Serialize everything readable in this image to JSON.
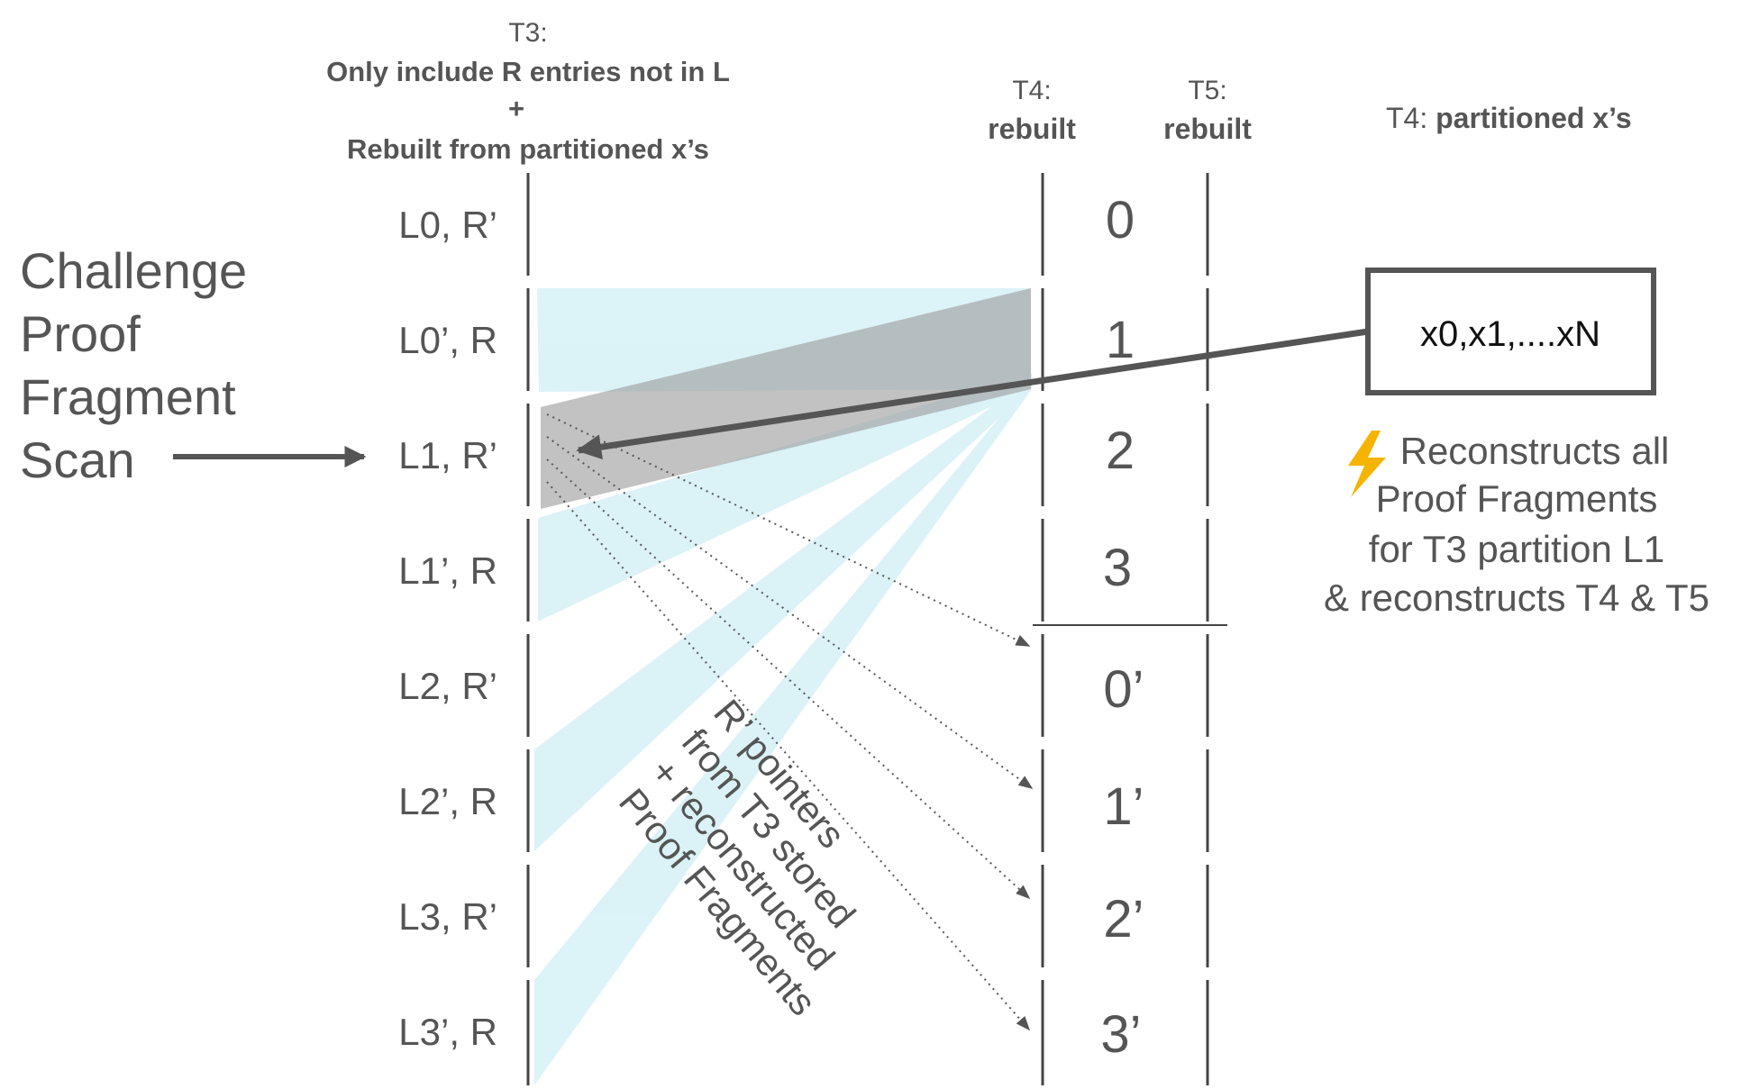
{
  "t3_header": {
    "line1": "T3:",
    "line2": "Only include R entries not in L",
    "line3": "+",
    "line4": "Rebuilt from partitioned x’s"
  },
  "t4_header": {
    "label": "T4:",
    "value": "rebuilt"
  },
  "t5_header": {
    "label": "T5:",
    "value": "rebuilt"
  },
  "t4_partition_header": {
    "label": "T4: ",
    "value": "partitioned x’s"
  },
  "challenge": {
    "lines": [
      "Challenge",
      "Proof",
      "Fragment",
      "Scan"
    ]
  },
  "rows": [
    "L0, R’",
    "L0’, R",
    "L1, R’",
    "L1’, R",
    "L2, R’",
    "L2’, R",
    "L3, R’",
    "L3’, R"
  ],
  "t4_entries": [
    "0",
    "1",
    "2",
    "3",
    "0’",
    "1’",
    "2’",
    "3’"
  ],
  "x_box": {
    "text": "x0,x1,....xN"
  },
  "reconstruct_note": {
    "icon": "lightning-icon",
    "lines": [
      "Reconstructs all",
      "Proof Fragments",
      "for T3 partition L1",
      "& reconstructs T4 & T5"
    ]
  },
  "pointer_note": {
    "lines": [
      "R’ pointers",
      "from T3 stored",
      "+ reconstructed",
      "Proof Fragments"
    ]
  },
  "colors": {
    "text": "#555555",
    "cyan": "#bfe9f2",
    "gray": "#9a9a9a",
    "line": "#444444",
    "lightning": "#f5b400"
  }
}
